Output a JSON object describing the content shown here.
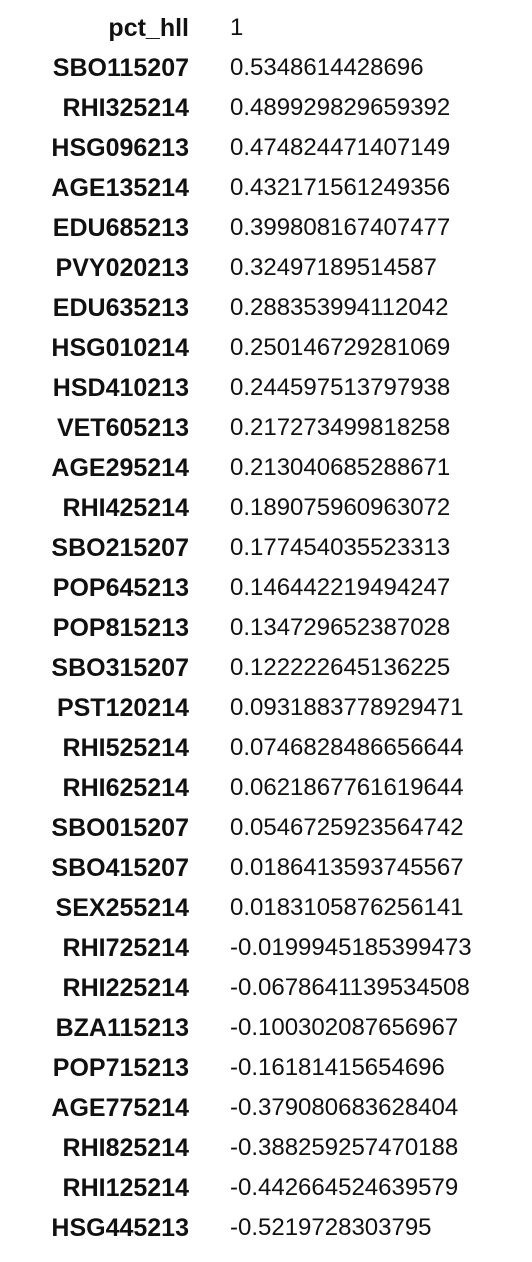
{
  "table": {
    "rows": [
      {
        "key": "pct_hll",
        "value": "1"
      },
      {
        "key": "SBO115207",
        "value": "0.5348614428696"
      },
      {
        "key": "RHI325214",
        "value": "0.489929829659392"
      },
      {
        "key": "HSG096213",
        "value": "0.474824471407149"
      },
      {
        "key": "AGE135214",
        "value": "0.432171561249356"
      },
      {
        "key": "EDU685213",
        "value": "0.399808167407477"
      },
      {
        "key": "PVY020213",
        "value": "0.32497189514587"
      },
      {
        "key": "EDU635213",
        "value": "0.288353994112042"
      },
      {
        "key": "HSG010214",
        "value": "0.250146729281069"
      },
      {
        "key": "HSD410213",
        "value": "0.244597513797938"
      },
      {
        "key": "VET605213",
        "value": "0.217273499818258"
      },
      {
        "key": "AGE295214",
        "value": "0.213040685288671"
      },
      {
        "key": "RHI425214",
        "value": "0.189075960963072"
      },
      {
        "key": "SBO215207",
        "value": "0.177454035523313"
      },
      {
        "key": "POP645213",
        "value": "0.146442219494247"
      },
      {
        "key": "POP815213",
        "value": "0.134729652387028"
      },
      {
        "key": "SBO315207",
        "value": "0.122222645136225"
      },
      {
        "key": "PST120214",
        "value": "0.0931883778929471"
      },
      {
        "key": "RHI525214",
        "value": "0.0746828486656644"
      },
      {
        "key": "RHI625214",
        "value": "0.0621867761619644"
      },
      {
        "key": "SBO015207",
        "value": "0.0546725923564742"
      },
      {
        "key": "SBO415207",
        "value": "0.0186413593745567"
      },
      {
        "key": "SEX255214",
        "value": "0.0183105876256141"
      },
      {
        "key": "RHI725214",
        "value": "-0.0199945185399473"
      },
      {
        "key": "RHI225214",
        "value": "-0.0678641139534508"
      },
      {
        "key": "BZA115213",
        "value": "-0.100302087656967"
      },
      {
        "key": "POP715213",
        "value": "-0.16181415654696"
      },
      {
        "key": "AGE775214",
        "value": "-0.379080683628404"
      },
      {
        "key": "RHI825214",
        "value": "-0.388259257470188"
      },
      {
        "key": "RHI125214",
        "value": "-0.442664524639579"
      },
      {
        "key": "HSG445213",
        "value": "-0.5219728303795"
      }
    ]
  }
}
